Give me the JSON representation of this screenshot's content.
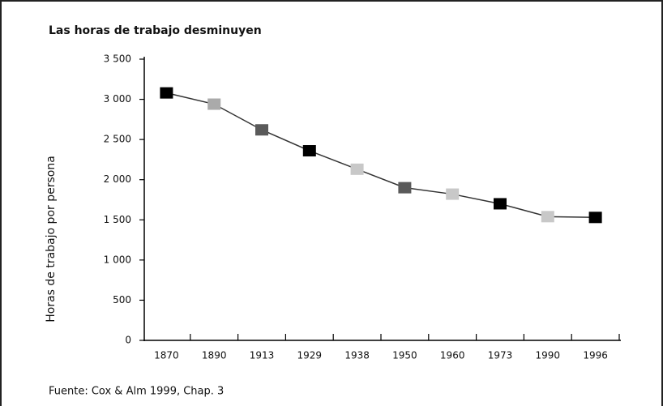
{
  "chart_data": {
    "type": "line",
    "title": "Las horas de trabajo desminuyen",
    "y_label": "Horas de trabajo por persona",
    "source": "Fuente: Cox & Alm 1999, Chap. 3",
    "categories": [
      "1870",
      "1890",
      "1913",
      "1929",
      "1938",
      "1950",
      "1960",
      "1973",
      "1990",
      "1996"
    ],
    "values": [
      3080,
      2940,
      2620,
      2360,
      2130,
      1900,
      1820,
      1700,
      1540,
      1530
    ],
    "line_color": "#333333",
    "marker_colors": [
      "#000000",
      "#aaaaaa",
      "#5a5a5a",
      "#000000",
      "#c8c8c8",
      "#5a5a5a",
      "#c8c8c8",
      "#000000",
      "#c8c8c8",
      "#000000"
    ],
    "ylim": [
      0,
      3500
    ],
    "yticks": [
      0,
      500,
      {
        "value": 1000,
        "label": "1 000"
      },
      {
        "value": 1500,
        "label": "1 500"
      },
      {
        "value": 2000,
        "label": "2 000"
      },
      {
        "value": 2500,
        "label": "2 500"
      },
      {
        "value": 3000,
        "label": "3 000"
      },
      {
        "value": 3500,
        "label": "3 500"
      }
    ],
    "grid": false
  }
}
